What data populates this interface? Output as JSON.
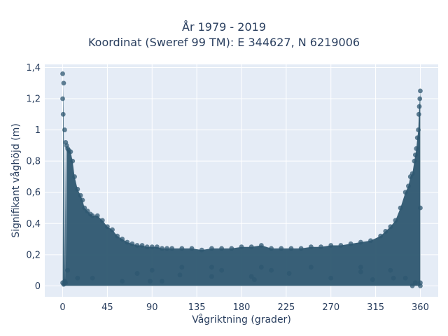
{
  "chart_data": {
    "type": "scatter",
    "title_lines": [
      "År 1979 - 2019",
      "Koordinat (Sweref 99 TM): E 344627, N 6219006"
    ],
    "xlabel": "Vågriktning (grader)",
    "ylabel": "Signifikant våghöjd (m)",
    "xlim": [
      -18,
      378
    ],
    "ylim": [
      -0.07,
      1.42
    ],
    "x_ticks": [
      0,
      45,
      90,
      135,
      180,
      225,
      270,
      315,
      360
    ],
    "x_tick_labels": [
      "0",
      "45",
      "90",
      "135",
      "180",
      "225",
      "270",
      "315",
      "360"
    ],
    "y_ticks": [
      0,
      0.2,
      0.4,
      0.6,
      0.8,
      1.0,
      1.2,
      1.4
    ],
    "y_tick_labels": [
      "0",
      "0,2",
      "0,4",
      "0,6",
      "0,8",
      "1",
      "1,2",
      "1,4"
    ],
    "grid": true,
    "legend": "none",
    "marker_color": "#2e5770",
    "background_color": "#e5ecf6",
    "series": [
      {
        "x": [
          0,
          0,
          0,
          0.5,
          1,
          1,
          2,
          2,
          3,
          3,
          4,
          5,
          6,
          8,
          10,
          12,
          15,
          18,
          20,
          22,
          25,
          28,
          30,
          35,
          40,
          45,
          50,
          55,
          60,
          65,
          70,
          75,
          80,
          85,
          90,
          95,
          100,
          105,
          110,
          120,
          130,
          140,
          150,
          160,
          170,
          180,
          190,
          200,
          210,
          220,
          230,
          240,
          250,
          260,
          270,
          280,
          290,
          300,
          310,
          320,
          325,
          330,
          335,
          340,
          345,
          348,
          350,
          352,
          354,
          355,
          356,
          357,
          358,
          358.5,
          359,
          359.5,
          360,
          360,
          360,
          360,
          88,
          100,
          118,
          150,
          160,
          190,
          193,
          210,
          228,
          270,
          300,
          312,
          333,
          352,
          5,
          15,
          30,
          60,
          75,
          90,
          120,
          150,
          200,
          250,
          300,
          330,
          345,
          355
        ],
        "y": [
          1.36,
          1.2,
          0.02,
          1.1,
          1.3,
          0.01,
          1.0,
          0.03,
          0.92,
          0.02,
          0.9,
          0.88,
          0.87,
          0.86,
          0.8,
          0.7,
          0.62,
          0.58,
          0.55,
          0.5,
          0.48,
          0.46,
          0.45,
          0.45,
          0.42,
          0.38,
          0.36,
          0.32,
          0.3,
          0.28,
          0.27,
          0.26,
          0.26,
          0.25,
          0.25,
          0.25,
          0.24,
          0.24,
          0.24,
          0.24,
          0.24,
          0.23,
          0.24,
          0.24,
          0.24,
          0.25,
          0.25,
          0.26,
          0.24,
          0.24,
          0.24,
          0.24,
          0.25,
          0.25,
          0.26,
          0.26,
          0.27,
          0.28,
          0.29,
          0.32,
          0.35,
          0.38,
          0.42,
          0.5,
          0.6,
          0.64,
          0.7,
          0.72,
          0.8,
          0.84,
          0.88,
          0.95,
          1.0,
          1.1,
          1.15,
          1.2,
          1.25,
          0.02,
          0.5,
          0.0,
          0.03,
          0.03,
          0.07,
          0.06,
          0.1,
          0.06,
          0.04,
          0.1,
          0.08,
          0.05,
          0.09,
          0.04,
          0.05,
          0.0,
          0.1,
          0.05,
          0.05,
          0.03,
          0.08,
          0.1,
          0.12,
          0.12,
          0.12,
          0.12,
          0.12,
          0.1,
          0.05,
          0.02
        ]
      }
    ]
  }
}
